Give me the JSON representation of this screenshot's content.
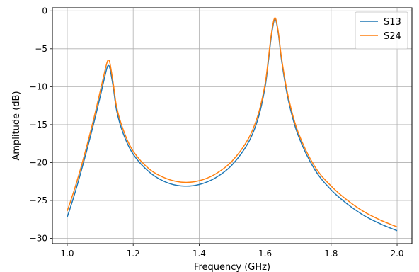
{
  "chart_data": {
    "type": "line",
    "title": "",
    "xlabel": "Frequency (GHz)",
    "ylabel": "Amplitude (dB)",
    "xlim": [
      0.955,
      2.045
    ],
    "ylim": [
      -30.7,
      0.4
    ],
    "x_ticks": [
      1.0,
      1.2,
      1.4,
      1.6,
      1.8,
      2.0
    ],
    "x_tick_labels": [
      "1.0",
      "1.2",
      "1.4",
      "1.6",
      "1.8",
      "2.0"
    ],
    "y_ticks": [
      0,
      -5,
      -10,
      -15,
      -20,
      -25,
      -30
    ],
    "y_tick_labels": [
      "0",
      "−5",
      "−10",
      "−15",
      "−20",
      "−25",
      "−30"
    ],
    "grid": true,
    "legend_position": "top-right",
    "x": [
      1.0,
      1.02,
      1.04,
      1.06,
      1.08,
      1.1,
      1.11,
      1.12,
      1.125,
      1.13,
      1.14,
      1.15,
      1.17,
      1.2,
      1.25,
      1.3,
      1.35,
      1.4,
      1.45,
      1.5,
      1.55,
      1.58,
      1.6,
      1.61,
      1.62,
      1.63,
      1.64,
      1.65,
      1.67,
      1.7,
      1.75,
      1.8,
      1.85,
      1.9,
      1.95,
      2.0
    ],
    "series": [
      {
        "name": "S13",
        "color": "#1f77b4",
        "values": [
          -27.2,
          -24.5,
          -21.5,
          -18.3,
          -14.9,
          -11.3,
          -9.4,
          -7.6,
          -7.2,
          -7.7,
          -10.2,
          -13.2,
          -16.2,
          -18.9,
          -21.3,
          -22.6,
          -23.1,
          -22.9,
          -22.0,
          -20.3,
          -17.3,
          -14.0,
          -10.0,
          -6.6,
          -3.0,
          -1.1,
          -3.0,
          -6.6,
          -11.7,
          -16.4,
          -20.9,
          -23.6,
          -25.5,
          -27.0,
          -28.1,
          -29.0
        ]
      },
      {
        "name": "S24",
        "color": "#ff7f0e",
        "values": [
          -26.4,
          -23.8,
          -20.9,
          -17.7,
          -14.3,
          -10.6,
          -8.7,
          -6.9,
          -6.5,
          -7.0,
          -9.7,
          -12.7,
          -15.7,
          -18.5,
          -20.9,
          -22.1,
          -22.6,
          -22.4,
          -21.5,
          -19.8,
          -16.8,
          -13.5,
          -9.6,
          -6.2,
          -2.7,
          -0.9,
          -2.8,
          -6.3,
          -11.3,
          -16.0,
          -20.5,
          -23.1,
          -25.0,
          -26.5,
          -27.6,
          -28.5
        ]
      }
    ]
  }
}
